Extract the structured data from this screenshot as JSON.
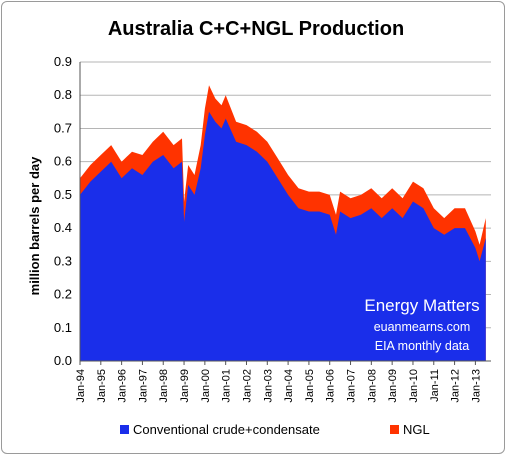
{
  "chart_data": {
    "type": "area",
    "title": "Australia C+C+NGL Production",
    "ylabel": "million barrels per day",
    "xlabel": "",
    "ylim": [
      0,
      0.9
    ],
    "yticks": [
      "0.0",
      "0.1",
      "0.2",
      "0.3",
      "0.4",
      "0.5",
      "0.6",
      "0.7",
      "0.8",
      "0.9"
    ],
    "xticks": [
      "Jan-94",
      "Jan-95",
      "Jan-96",
      "Jan-97",
      "Jan-98",
      "Jan-99",
      "Jan-00",
      "Jan-01",
      "Jan-02",
      "Jan-03",
      "Jan-04",
      "Jan-05",
      "Jan-06",
      "Jan-07",
      "Jan-08",
      "Jan-09",
      "Jan-10",
      "Jan-11",
      "Jan-12",
      "Jan-13"
    ],
    "grid": "horizontal",
    "legend_position": "bottom",
    "annotations": [
      "Energy Matters",
      "euanmearns.com",
      "EIA monthly data"
    ],
    "x": [
      1994.0,
      1994.5,
      1995.0,
      1995.5,
      1996.0,
      1996.5,
      1997.0,
      1997.5,
      1998.0,
      1998.5,
      1998.9,
      1999.0,
      1999.2,
      1999.5,
      1999.8,
      2000.0,
      2000.2,
      2000.5,
      2000.8,
      2001.0,
      2001.5,
      2002.0,
      2002.5,
      2003.0,
      2003.5,
      2004.0,
      2004.5,
      2005.0,
      2005.5,
      2006.0,
      2006.3,
      2006.5,
      2007.0,
      2007.5,
      2008.0,
      2008.5,
      2009.0,
      2009.5,
      2010.0,
      2010.5,
      2011.0,
      2011.5,
      2012.0,
      2012.5,
      2013.0,
      2013.2,
      2013.5
    ],
    "series": [
      {
        "name": "Conventional crude+condensate",
        "color": "#1a2eea",
        "values": [
          0.5,
          0.54,
          0.57,
          0.6,
          0.55,
          0.58,
          0.56,
          0.6,
          0.62,
          0.58,
          0.6,
          0.42,
          0.53,
          0.5,
          0.58,
          0.68,
          0.75,
          0.72,
          0.7,
          0.73,
          0.66,
          0.65,
          0.63,
          0.6,
          0.55,
          0.5,
          0.46,
          0.45,
          0.45,
          0.44,
          0.38,
          0.45,
          0.43,
          0.44,
          0.46,
          0.43,
          0.46,
          0.43,
          0.48,
          0.46,
          0.4,
          0.38,
          0.4,
          0.4,
          0.34,
          0.3,
          0.37
        ]
      },
      {
        "name": "NGL",
        "color": "#ff3300",
        "values": [
          0.05,
          0.05,
          0.05,
          0.05,
          0.05,
          0.05,
          0.06,
          0.06,
          0.07,
          0.07,
          0.07,
          0.06,
          0.06,
          0.06,
          0.07,
          0.08,
          0.08,
          0.07,
          0.07,
          0.07,
          0.06,
          0.06,
          0.06,
          0.06,
          0.06,
          0.06,
          0.06,
          0.06,
          0.06,
          0.06,
          0.06,
          0.06,
          0.06,
          0.06,
          0.06,
          0.06,
          0.06,
          0.06,
          0.06,
          0.06,
          0.06,
          0.05,
          0.06,
          0.06,
          0.05,
          0.05,
          0.06
        ]
      }
    ]
  }
}
